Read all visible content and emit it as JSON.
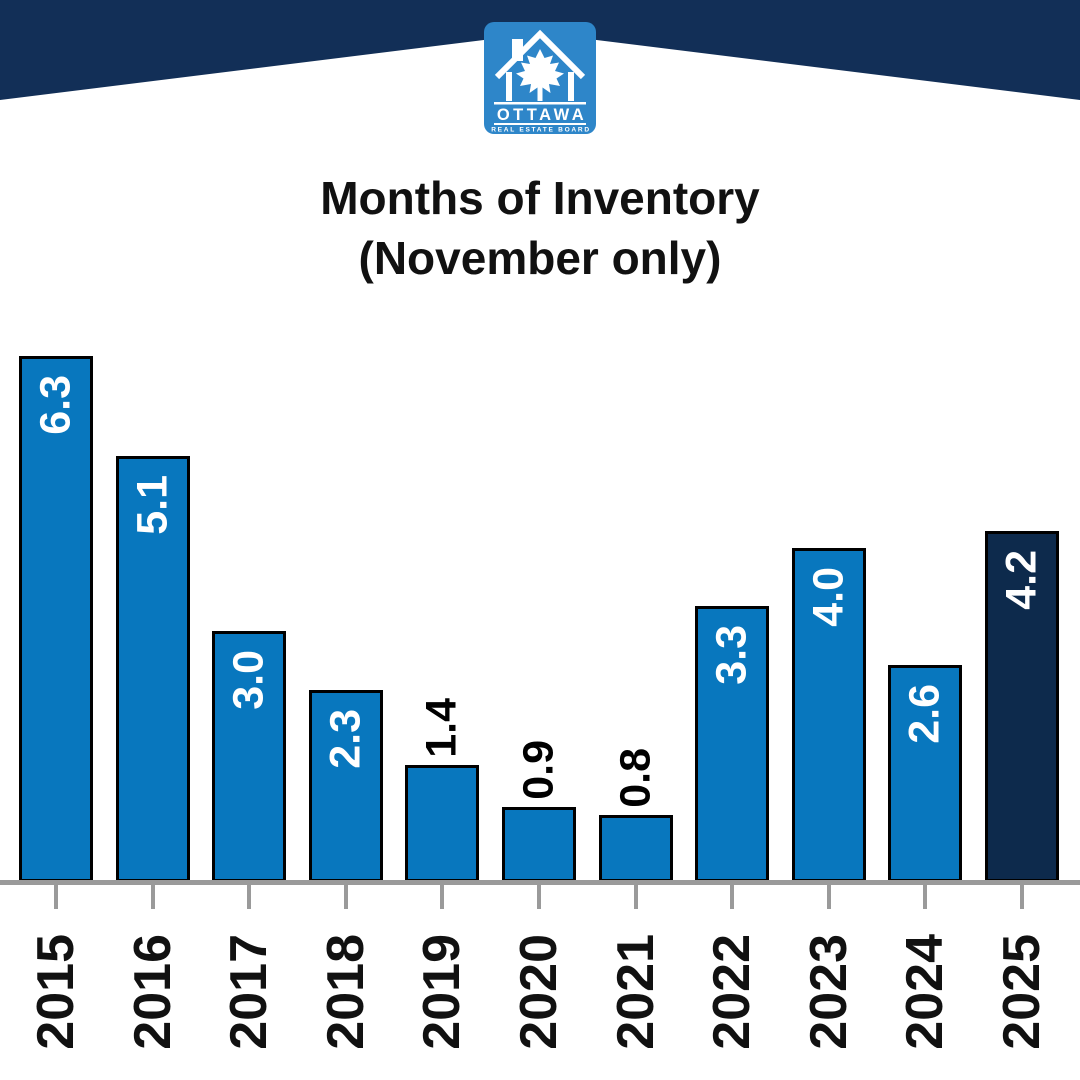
{
  "brand": {
    "logo_title": "OTTAWA",
    "logo_subtitle": "REAL ESTATE BOARD",
    "banner_color": "#122f57",
    "logo_color": "#2e86c9",
    "logo_foreground": "#ffffff"
  },
  "title": {
    "line1": "Months of Inventory",
    "line2": "(November only)"
  },
  "chart_data": {
    "type": "bar",
    "title": "Months of Inventory (November only)",
    "xlabel": "",
    "ylabel": "",
    "categories": [
      "2015",
      "2016",
      "2017",
      "2018",
      "2019",
      "2020",
      "2021",
      "2022",
      "2023",
      "2024",
      "2025"
    ],
    "values": [
      6.3,
      5.1,
      3.0,
      2.3,
      1.4,
      0.9,
      0.8,
      3.3,
      4.0,
      2.6,
      4.2
    ],
    "value_labels": [
      "6.3",
      "5.1",
      "3.0",
      "2.3",
      "1.4",
      "0.9",
      "0.8",
      "3.3",
      "4.0",
      "2.6",
      "4.2"
    ],
    "label_placement": [
      "inside",
      "inside",
      "inside",
      "inside",
      "above",
      "above",
      "above",
      "inside",
      "inside",
      "inside",
      "inside"
    ],
    "ylim": [
      0,
      6.5
    ],
    "grid": "off",
    "legend": "none",
    "bar_color": "#0877be",
    "highlight_color": "#0d2a4c",
    "highlight_index": 10,
    "bar_border_color": "#000000",
    "label_inside_color": "#ffffff",
    "label_outside_color": "#000000",
    "axis_color": "#9a9a9a"
  }
}
